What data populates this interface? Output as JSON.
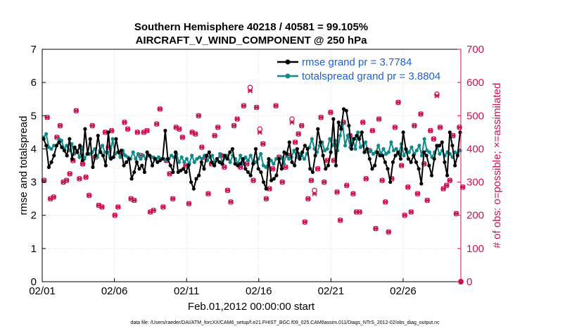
{
  "chart_data": {
    "type": "line",
    "title": "Southern Hemisphere 40218 / 40581 = 99.105%",
    "subtitle": "AIRCRAFT_V_WIND_COMPONENT @ 250 hPa",
    "xlabel": "Feb.01,2012 00:00:00 start",
    "ylabel": "rmse and totalspread",
    "y2label": "# of obs: o=possible; ×=assimilated",
    "footnote": "data file: /Users/raeder/DAI/ATM_forcXX/CAM6_setup/f.e21.FHIST_BGC.f09_025.CAM6assim.011/Diags_NTrS_2012-02/obs_diag_output.nc",
    "xlim": [
      0,
      29
    ],
    "ylim": [
      0,
      7
    ],
    "y2lim": [
      0,
      700
    ],
    "x_ticks": [
      0,
      5,
      10,
      15,
      20,
      25
    ],
    "x_tick_labels": [
      "02/01",
      "02/06",
      "02/11",
      "02/16",
      "02/21",
      "02/26"
    ],
    "y_ticks": [
      0,
      1,
      2,
      3,
      4,
      5,
      6,
      7
    ],
    "y_tick_labels": [
      "0",
      "1",
      "2",
      "3",
      "4",
      "5",
      "6",
      "7"
    ],
    "y2_ticks": [
      0,
      100,
      200,
      300,
      400,
      500,
      600,
      700
    ],
    "y2_tick_labels": [
      "0",
      "100",
      "200",
      "300",
      "400",
      "500",
      "600",
      "700"
    ],
    "legend_position": "top-right",
    "step_days": 0.25,
    "series": [
      {
        "name": "rmse grand pr = 3.7784",
        "color": "#000000",
        "marker": "circle",
        "axis": "left",
        "values": [
          4.3,
          4.1,
          3.45,
          3.6,
          3.8,
          4.1,
          4.2,
          4.05,
          3.95,
          3.8,
          4.3,
          3.7,
          4.05,
          3.9,
          4.1,
          3.65,
          4.6,
          3.85,
          4.3,
          3.45,
          3.8,
          4.4,
          3.9,
          3.8,
          3.5,
          4.5,
          3.7,
          3.75,
          4.3,
          3.9,
          3.95,
          3.5,
          3.6,
          3.7,
          3.1,
          3.3,
          3.6,
          3.4,
          3.5,
          3.3,
          3.9,
          3.8,
          3.5,
          3.7,
          3.6,
          3.65,
          3.7,
          4.55,
          3.7,
          3.5,
          3.3,
          3.9,
          3.3,
          3.35,
          3.4,
          3.3,
          3.5,
          3.0,
          2.8,
          3.1,
          3.2,
          3.6,
          3.4,
          3.8,
          3.9,
          3.6,
          3.5,
          3.7,
          3.6,
          3.55,
          3.8,
          3.7,
          3.9,
          4.0,
          3.55,
          3.5,
          3.55,
          3.7,
          3.4,
          3.3,
          3.2,
          3.55,
          4.0,
          3.4,
          3.3,
          3.0,
          2.8,
          3.7,
          3.05,
          3.1,
          3.2,
          3.7,
          3.4,
          3.9,
          3.85,
          4.2,
          3.6,
          3.5,
          4.0,
          3.7,
          3.9,
          4.1,
          4.0,
          3.4,
          3.3,
          3.8,
          4.6,
          4.2,
          3.8,
          3.4,
          3.5,
          3.9,
          4.9,
          3.5,
          4.8,
          4.6,
          5.2,
          5.15,
          4.7,
          4.0,
          4.3,
          4.4,
          4.3,
          4.5,
          3.9,
          4.0,
          3.7,
          3.4,
          3.5,
          3.9,
          3.8,
          3.8,
          3.6,
          3.4,
          3.0,
          3.6,
          3.8,
          3.9,
          3.7,
          4.5,
          4.0,
          3.7,
          3.6,
          3.8,
          3.6,
          3.4,
          2.95,
          3.9,
          3.8,
          3.5,
          3.2,
          3.7,
          4.1,
          4.1,
          4.2,
          3.6,
          3.2,
          4.5,
          4.1,
          3.5,
          3.8,
          4.5
        ]
      },
      {
        "name": "totalspread grand pr = 3.8804",
        "color": "#0f8a8a",
        "marker": "circle",
        "axis": "left",
        "values": [
          4.35,
          4.45,
          4.05,
          4.0,
          4.1,
          4.1,
          4.3,
          4.25,
          4.0,
          4.1,
          3.95,
          4.15,
          3.85,
          3.95,
          3.75,
          4.05,
          3.7,
          3.85,
          3.85,
          3.9,
          4.0,
          3.75,
          3.95,
          4.1,
          3.9,
          3.9,
          3.75,
          4.3,
          3.85,
          3.9,
          3.75,
          3.95,
          3.8,
          3.75,
          3.7,
          3.9,
          3.7,
          3.85,
          3.7,
          3.8,
          3.7,
          3.8,
          3.75,
          3.75,
          3.7,
          3.75,
          3.7,
          3.7,
          3.65,
          3.7,
          3.8,
          3.75,
          3.85,
          3.6,
          3.75,
          3.6,
          3.7,
          3.55,
          3.8,
          3.6,
          3.7,
          3.75,
          3.7,
          3.8,
          3.65,
          3.75,
          3.8,
          3.6,
          3.65,
          3.85,
          3.55,
          3.75,
          3.8,
          3.6,
          3.8,
          3.7,
          3.55,
          3.8,
          3.55,
          3.75,
          3.65,
          3.8,
          3.6,
          3.6,
          3.7,
          3.85,
          3.5,
          3.45,
          3.6,
          3.65,
          3.55,
          3.7,
          3.7,
          3.75,
          3.55,
          3.85,
          3.7,
          3.75,
          3.95,
          3.75,
          3.85,
          3.8,
          3.7,
          3.85,
          4.05,
          4.3,
          4.0,
          3.9,
          4.1,
          4.2,
          3.95,
          4.0,
          4.3,
          4.1,
          4.25,
          3.95,
          4.4,
          4.75,
          4.1,
          4.4,
          4.05,
          4.3,
          4.0,
          4.5,
          4.05,
          4.1,
          4.2,
          3.9,
          3.95,
          3.85,
          3.9,
          4.1,
          3.85,
          4.0,
          3.85,
          3.9,
          4.2,
          3.95,
          4.0,
          3.85,
          4.15,
          3.8,
          3.95,
          3.9,
          4.05,
          3.85,
          3.95,
          4.1,
          3.8,
          4.3,
          3.95,
          3.9,
          3.75,
          3.9,
          4.05,
          3.85,
          3.95,
          3.8,
          3.9,
          3.85,
          3.75,
          3.9,
          3.85,
          3.95
        ]
      },
      {
        "name": "# of obs possible",
        "color": "#cc1155",
        "marker": "o",
        "axis": "right",
        "values": [
          305,
          495,
          250,
          255,
          435,
          470,
          300,
          305,
          325,
          365,
          515,
          310,
          355,
          315,
          260,
          470,
          375,
          230,
          225,
          450,
          405,
          455,
          200,
          225,
          385,
          480,
          460,
          250,
          245,
          450,
          380,
          450,
          455,
          210,
          215,
          475,
          520,
          225,
          365,
          325,
          250,
          465,
          460,
          435,
          350,
          235,
          450,
          445,
          500,
          405,
          375,
          265,
          355,
          440,
          465,
          380,
          345,
          275,
          240,
          470,
          490,
          345,
          530,
          355,
          585,
          305,
          525,
          460,
          415,
          250,
          280,
          340,
          530,
          375,
          300,
          345,
          380,
          490,
          420,
          445,
          470,
          180,
          250,
          305,
          275,
          340,
          495,
          300,
          365,
          510,
          365,
          270,
          185,
          480,
          290,
          440,
          265,
          210,
          210,
          480,
          310,
          395,
          455,
          160,
          490,
          305,
          240,
          150,
          310,
          465,
          540,
          350,
          200,
          285,
          210,
          470,
          265,
          505,
          355,
          245,
          455,
          430,
          565,
          465,
          280,
          290,
          305,
          440,
          205,
          465,
          285
        ]
      },
      {
        "name": "# of obs assimilated",
        "color": "#cc1155",
        "marker": "x",
        "axis": "right",
        "values": [
          305,
          495,
          250,
          255,
          435,
          470,
          300,
          305,
          325,
          365,
          515,
          310,
          355,
          315,
          260,
          470,
          375,
          230,
          225,
          450,
          405,
          455,
          200,
          225,
          385,
          480,
          460,
          250,
          245,
          450,
          380,
          450,
          455,
          210,
          215,
          475,
          520,
          225,
          365,
          325,
          250,
          465,
          460,
          435,
          350,
          235,
          450,
          445,
          500,
          405,
          375,
          265,
          355,
          440,
          465,
          380,
          345,
          275,
          240,
          470,
          490,
          345,
          530,
          355,
          575,
          305,
          525,
          450,
          415,
          250,
          280,
          340,
          530,
          375,
          300,
          345,
          380,
          480,
          420,
          445,
          470,
          180,
          250,
          305,
          265,
          340,
          495,
          300,
          365,
          510,
          365,
          270,
          185,
          480,
          290,
          440,
          265,
          210,
          210,
          480,
          310,
          395,
          455,
          160,
          490,
          305,
          240,
          150,
          310,
          465,
          540,
          350,
          200,
          285,
          210,
          470,
          265,
          505,
          355,
          245,
          455,
          430,
          560,
          465,
          280,
          290,
          305,
          440,
          205,
          465,
          285
        ]
      }
    ]
  },
  "zero_marker_value": 0
}
